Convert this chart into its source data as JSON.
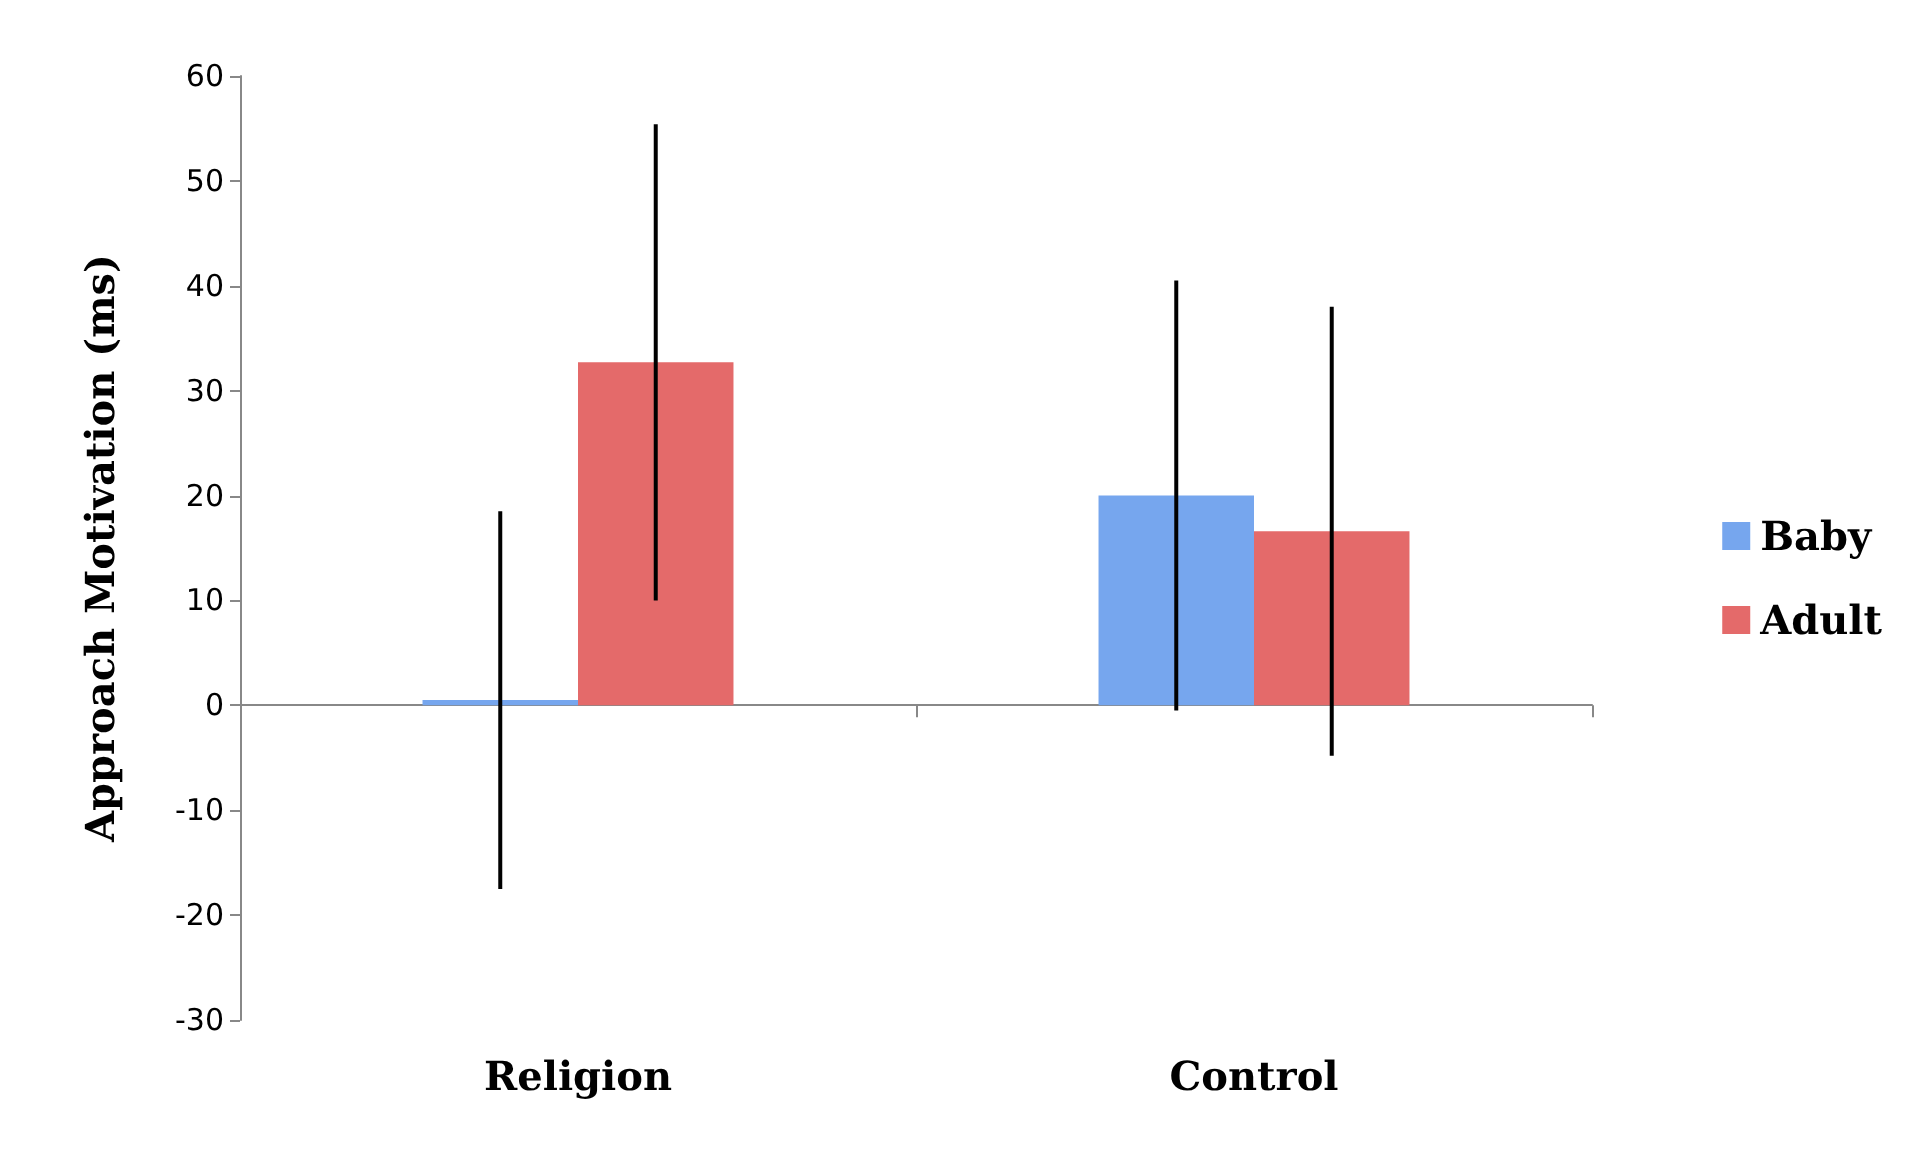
{
  "chart_data": {
    "type": "bar",
    "ylabel": "Approach Motivation (ms)",
    "categories": [
      "Religion",
      "Control"
    ],
    "series": [
      {
        "name": "Baby",
        "color": "#76a6ee",
        "values": [
          0.5,
          20
        ],
        "errors": [
          18,
          20.5
        ]
      },
      {
        "name": "Adult",
        "color": "#e46a6a",
        "values": [
          32.7,
          16.6
        ],
        "errors": [
          22.7,
          21.4
        ]
      }
    ],
    "ylim": [
      -30,
      60
    ],
    "yticks": [
      -30,
      -20,
      -10,
      0,
      10,
      20,
      30,
      40,
      50,
      60
    ],
    "legend": "right"
  }
}
